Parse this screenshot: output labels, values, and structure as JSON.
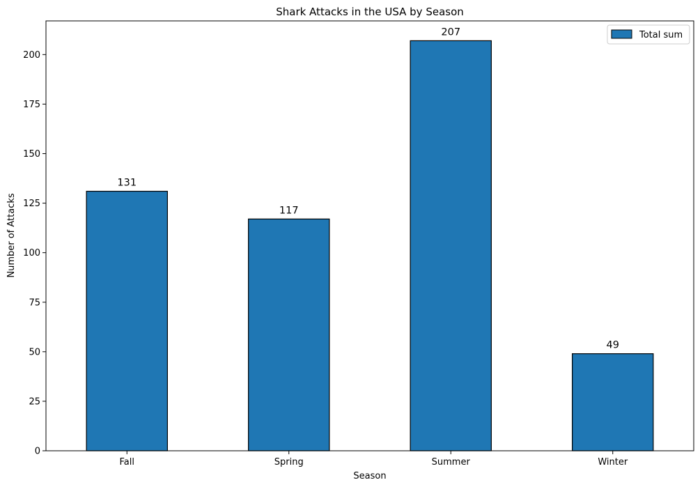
{
  "chart_data": {
    "type": "bar",
    "title": "Shark Attacks in the USA by Season",
    "xlabel": "Season",
    "ylabel": "Number of Attacks",
    "categories": [
      "Fall",
      "Spring",
      "Summer",
      "Winter"
    ],
    "series": [
      {
        "name": "Total sum",
        "values": [
          131,
          117,
          207,
          49
        ],
        "color": "#1f77b4",
        "edge_color": "#000000"
      }
    ],
    "data_labels": [
      "131",
      "117",
      "207",
      "49"
    ],
    "ylim": [
      0,
      217
    ],
    "yticks": [
      0,
      25,
      50,
      75,
      100,
      125,
      150,
      175,
      200
    ],
    "grid": false,
    "legend": "top-right"
  }
}
